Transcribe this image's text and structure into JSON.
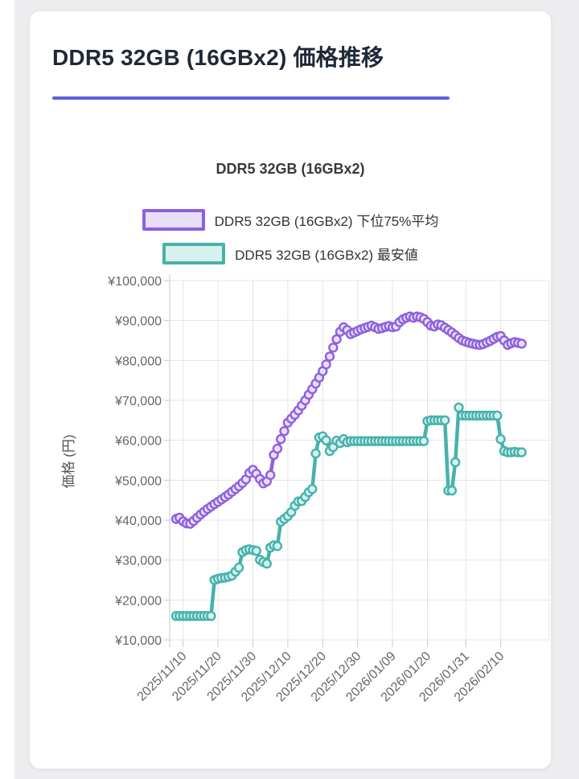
{
  "page": {
    "title": "DDR5 32GB (16GBx2) 価格推移"
  },
  "chart_data": {
    "type": "line",
    "title": "DDR5 32GB (16GBx2)",
    "ylabel": "価格 (円)",
    "ylim": [
      10000,
      100000
    ],
    "grid": true,
    "legend_position": "top",
    "y_ticks": [
      {
        "value": 10000,
        "label": "¥10,000"
      },
      {
        "value": 20000,
        "label": "¥20,000"
      },
      {
        "value": 30000,
        "label": "¥30,000"
      },
      {
        "value": 40000,
        "label": "¥40,000"
      },
      {
        "value": 50000,
        "label": "¥50,000"
      },
      {
        "value": 60000,
        "label": "¥60,000"
      },
      {
        "value": 70000,
        "label": "¥70,000"
      },
      {
        "value": 80000,
        "label": "¥80,000"
      },
      {
        "value": 90000,
        "label": "¥90,000"
      },
      {
        "value": 100000,
        "label": "¥100,000"
      }
    ],
    "x_tick_labels": [
      "2025/11/10",
      "2025/11/20",
      "2025/11/30",
      "2025/12/10",
      "2025/12/20",
      "2025/12/30",
      "2026/01/09",
      "2026/01/20",
      "2026/01/31",
      "2026/02/10"
    ],
    "x_tick_indices": [
      2,
      12,
      22,
      32,
      42,
      52,
      62,
      72,
      83,
      93
    ],
    "series": [
      {
        "name": "DDR5 32GB (16GBx2) 下位75%平均",
        "color": "#8d61dd",
        "fill": "#e9def8",
        "values": [
          40300,
          40600,
          39700,
          39200,
          39100,
          39800,
          40600,
          41400,
          42100,
          42800,
          43400,
          44000,
          44600,
          45200,
          45800,
          46400,
          47100,
          47800,
          48500,
          49300,
          50200,
          51800,
          52600,
          51600,
          50300,
          49200,
          49700,
          51300,
          56300,
          57900,
          60300,
          62300,
          64400,
          65400,
          66400,
          67500,
          68700,
          70000,
          71400,
          72800,
          74200,
          75700,
          77300,
          79000,
          81000,
          83200,
          85300,
          87200,
          88300,
          87600,
          86600,
          87000,
          87400,
          87800,
          88100,
          88400,
          88700,
          88300,
          87900,
          88100,
          88400,
          88600,
          88300,
          88500,
          89600,
          90300,
          90700,
          91000,
          90700,
          91000,
          90800,
          90400,
          89600,
          88700,
          88500,
          89000,
          88800,
          88200,
          87600,
          87000,
          86300,
          85600,
          85000,
          84700,
          84400,
          84200,
          84000,
          83900,
          84100,
          84500,
          84900,
          85400,
          85900,
          86100,
          85000,
          83900,
          84300,
          84600,
          84400,
          84200
        ]
      },
      {
        "name": "DDR5 32GB (16GBx2) 最安値",
        "color": "#46b2ab",
        "fill": "#d7f1ef",
        "values": [
          16000,
          16000,
          16000,
          16000,
          16000,
          16000,
          16000,
          16000,
          16000,
          16000,
          16000,
          25000,
          25300,
          25500,
          25600,
          25800,
          26100,
          27100,
          28100,
          32000,
          32500,
          32700,
          32500,
          32300,
          30100,
          29500,
          29100,
          33100,
          33700,
          33500,
          39600,
          40300,
          41000,
          42000,
          43600,
          44700,
          44800,
          45800,
          47000,
          47800,
          56700,
          60700,
          61000,
          60000,
          57300,
          58300,
          59900,
          59300,
          60300,
          59500,
          59800,
          59800,
          59800,
          59800,
          59800,
          59800,
          59800,
          59800,
          59800,
          59800,
          59800,
          59800,
          59800,
          59800,
          59800,
          59800,
          59800,
          59800,
          59800,
          59800,
          59800,
          59800,
          64800,
          65000,
          65000,
          65000,
          65000,
          65000,
          47400,
          47400,
          54500,
          68200,
          66200,
          66200,
          66200,
          66200,
          66200,
          66200,
          66200,
          66200,
          66200,
          66200,
          66200,
          60300,
          57300,
          57000,
          57000,
          57100,
          57000,
          57000
        ]
      }
    ],
    "colors": {
      "grid": "#e4e4e7",
      "axis": "#c9c9ce",
      "tick_text": "#67676c",
      "title_underline": "#5a5fd9"
    }
  }
}
